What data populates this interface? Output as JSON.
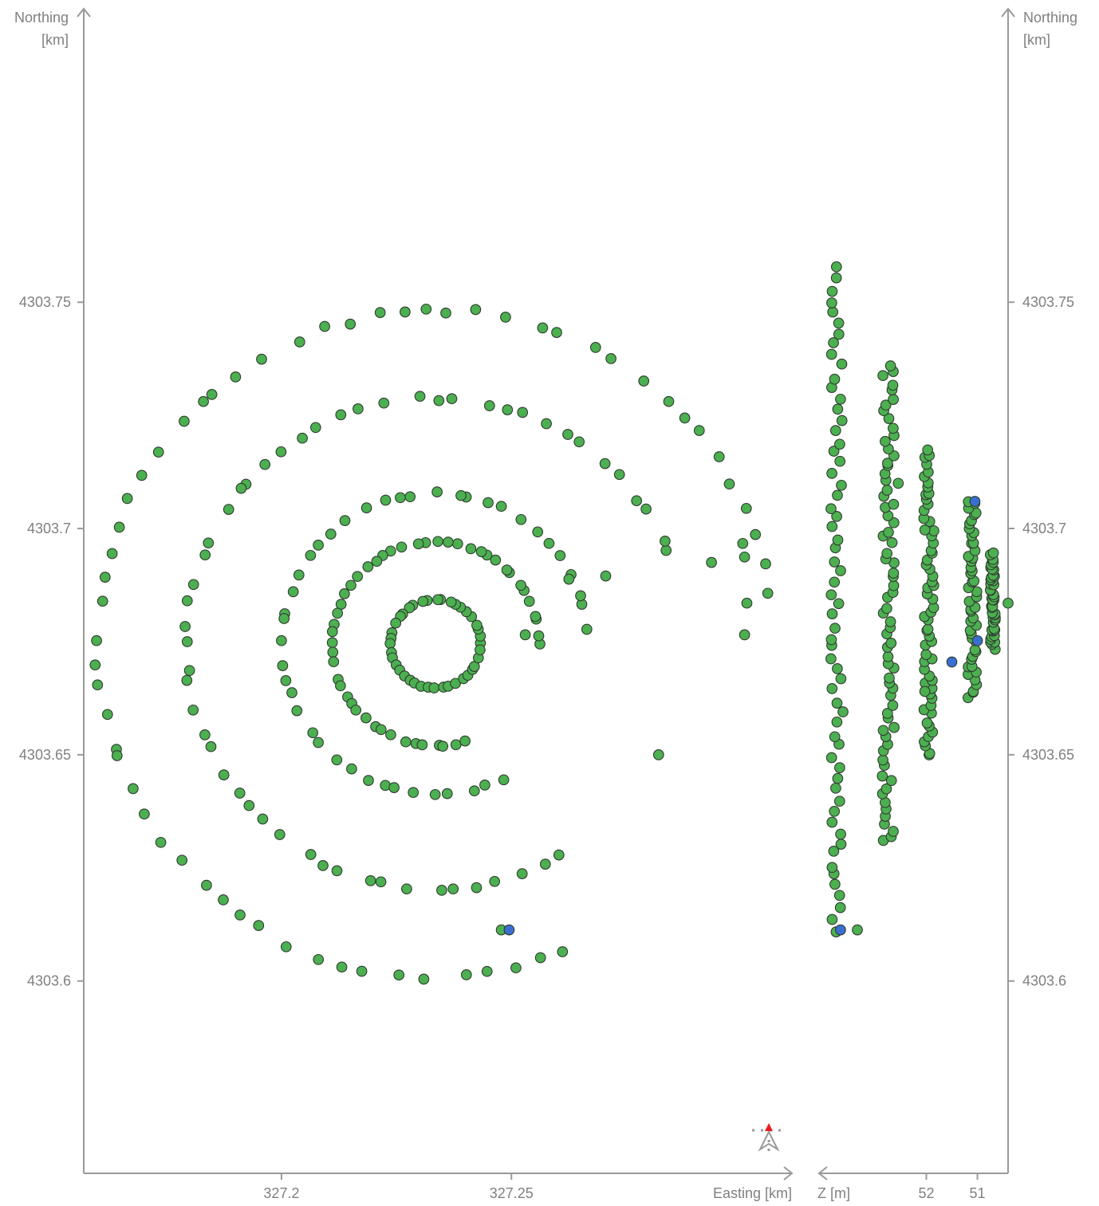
{
  "colors": {
    "point_fill": "#4caf50",
    "point_stroke": "#2f3a2f",
    "point_alt_fill": "#3a6fd0",
    "axis": "#9a9a9a",
    "text": "#808080",
    "compass_marker": "#ee1c1c"
  },
  "icons": {
    "compass": "north-arrow-icon"
  },
  "chart_data": {
    "type": "scatter",
    "plan_view": {
      "xlabel": "Easting [km]",
      "ylabel_left": [
        "Northing",
        "[km]"
      ],
      "ylabel_right": [
        "Northing",
        "[km]"
      ],
      "xticks": [
        327.2,
        327.25
      ],
      "xtick_labels": [
        "327.2",
        "327.25"
      ],
      "yticks": [
        4303.6,
        4303.65,
        4303.7,
        4303.75
      ],
      "ytick_labels": [
        "4303.6",
        "4303.65",
        "4303.7",
        "4303.75"
      ],
      "xlim": [
        327.157,
        327.311
      ],
      "ylim": [
        4303.5575,
        4303.8145
      ],
      "rings": [
        {
          "cx": 327.2335,
          "cy": 4303.6745,
          "r": 0.0098,
          "n": 40
        },
        {
          "cx": 327.2335,
          "cy": 4303.6745,
          "r": 0.0225,
          "n": 60,
          "gap": [
            -68,
            -5
          ]
        },
        {
          "cx": 327.2335,
          "cy": 4303.6745,
          "r": 0.0333,
          "n": 52,
          "gap": [
            -58,
            5
          ]
        },
        {
          "cx": 327.2335,
          "cy": 4303.6745,
          "r": 0.0543,
          "n": 68,
          "gap": [
            -52,
            22
          ]
        },
        {
          "cx": 327.2335,
          "cy": 4303.6745,
          "r": 0.0737,
          "n": 75,
          "gap": [
            -65,
            8
          ]
        }
      ],
      "points_extra": [
        {
          "x": 327.2478,
          "y": 4303.6113,
          "c": "g"
        },
        {
          "x": 327.2495,
          "y": 4303.6113,
          "c": "b"
        },
        {
          "x": 327.282,
          "y": 4303.65,
          "c": "g"
        },
        {
          "x": 327.2935,
          "y": 4303.6925,
          "c": "g"
        },
        {
          "x": 327.2705,
          "y": 4303.6895,
          "c": "g"
        },
        {
          "x": 327.3003,
          "y": 4303.6967,
          "c": "g"
        },
        {
          "x": 327.3007,
          "y": 4303.6937,
          "c": "g"
        },
        {
          "x": 327.3012,
          "y": 4303.6835,
          "c": "g"
        },
        {
          "x": 327.3007,
          "y": 4303.6765,
          "c": "g"
        },
        {
          "x": 327.2625,
          "y": 4303.6888,
          "c": "g"
        },
        {
          "x": 327.253,
          "y": 4303.6765,
          "c": "g"
        }
      ]
    },
    "depth_view": {
      "xlabel": "Z [m]",
      "xticks": [
        52,
        51
      ],
      "xtick_labels": [
        "52",
        "51"
      ],
      "zlim": [
        54.1,
        50.4
      ],
      "columns": [
        {
          "z": 53.75,
          "spread": 0.12,
          "n": 62,
          "y_min": 4303.6113,
          "y_max": 4303.7575
        },
        {
          "z": 52.75,
          "spread": 0.12,
          "n": 70,
          "y_min": 4303.6305,
          "y_max": 4303.7365
        },
        {
          "z": 51.95,
          "spread": 0.1,
          "n": 60,
          "y_min": 4303.6495,
          "y_max": 4303.7175
        },
        {
          "z": 51.1,
          "spread": 0.09,
          "n": 48,
          "y_min": 4303.6625,
          "y_max": 4303.7065
        },
        {
          "z": 50.7,
          "spread": 0.05,
          "n": 44,
          "y_min": 4303.6735,
          "y_max": 4303.6945
        }
      ],
      "points_extra": [
        {
          "z": 53.68,
          "y": 4303.6113,
          "c": "b"
        },
        {
          "z": 53.35,
          "y": 4303.6113,
          "c": "g"
        },
        {
          "z": 52.55,
          "y": 4303.71,
          "c": "g"
        },
        {
          "z": 52.03,
          "y": 4303.664,
          "c": "g"
        },
        {
          "z": 51.5,
          "y": 4303.6705,
          "c": "b"
        },
        {
          "z": 51.0,
          "y": 4303.6752,
          "c": "b"
        },
        {
          "z": 50.4,
          "y": 4303.6835,
          "c": "g"
        },
        {
          "z": 51.05,
          "y": 4303.706,
          "c": "b"
        }
      ]
    }
  }
}
